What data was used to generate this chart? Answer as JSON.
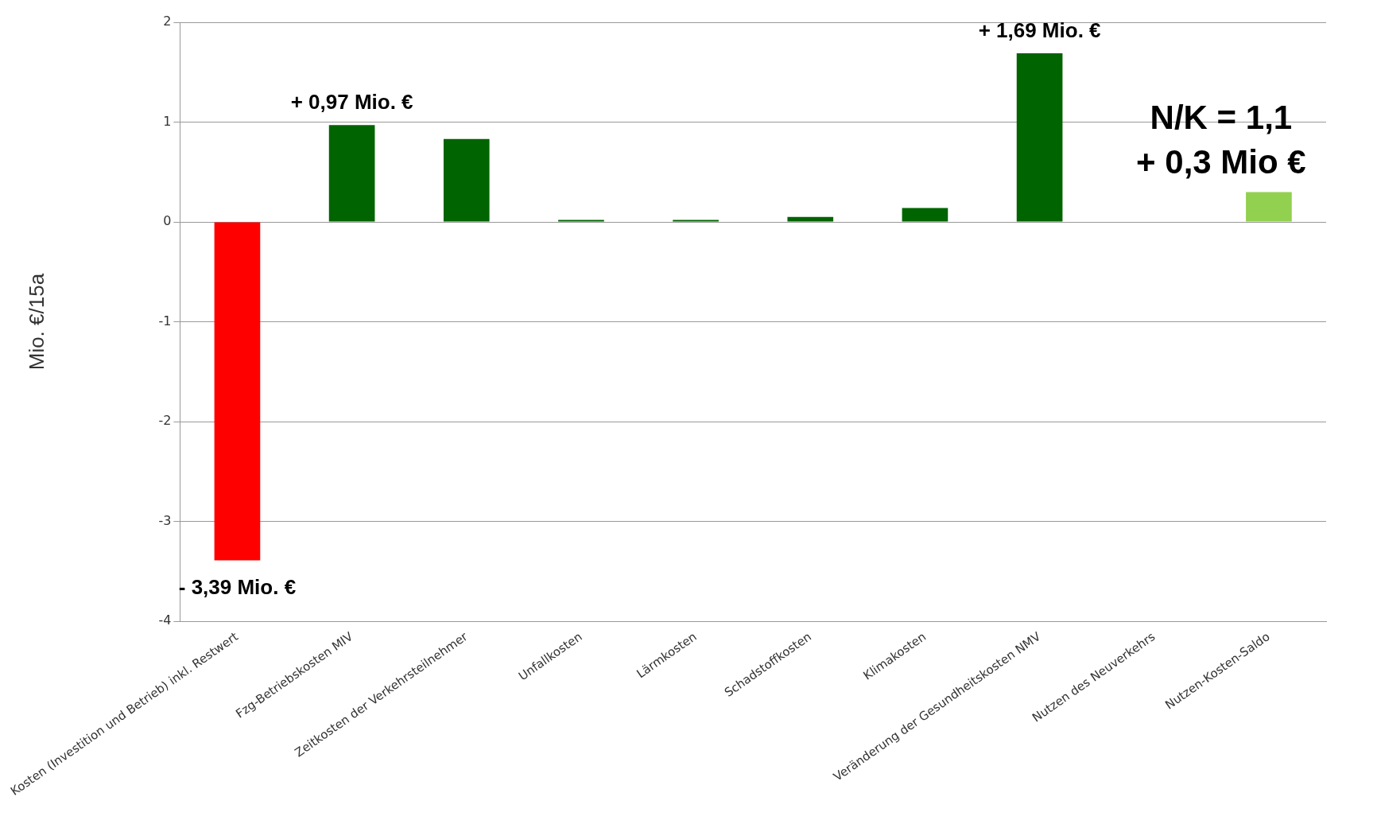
{
  "chart_data": {
    "type": "bar",
    "ylabel": "Mio. €/15a",
    "categories": [
      "Kosten (Investition und Betrieb) inkl. Restwert",
      "Fzg-Betriebskosten MIV",
      "Zeitkosten der Verkehrsteilnehmer",
      "Unfallkosten",
      "Lärmkosten",
      "Schadstoffkosten",
      "Klimakosten",
      "Veränderung der Gesundheitskosten NMV",
      "Nutzen des Neuverkehrs",
      "Nutzen-Kosten-Saldo"
    ],
    "values": [
      -3.39,
      0.97,
      0.83,
      0.02,
      0.02,
      0.05,
      0.14,
      1.69,
      0,
      0.3
    ],
    "colors": [
      "#ff0000",
      "#006400",
      "#006400",
      "#006400",
      "#006400",
      "#006400",
      "#006400",
      "#006400",
      "#006400",
      "#92d050"
    ],
    "value_labels": [
      "- 3,39 Mio. €",
      "+ 0,97 Mio. €",
      null,
      null,
      null,
      null,
      null,
      "+ 1,69 Mio. €",
      null,
      "+ 0,3 Mio €"
    ],
    "annotations": [
      {
        "text": "N/K = 1,1",
        "x": "Nutzen-Kosten-Saldo",
        "y": 0.3
      }
    ],
    "ylim": [
      -4,
      2
    ],
    "yticks": [
      -4,
      -3,
      -2,
      -1,
      0,
      1,
      2
    ],
    "grid": "y",
    "legend": false
  }
}
